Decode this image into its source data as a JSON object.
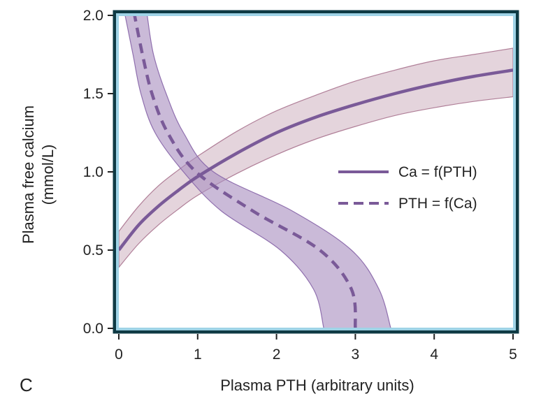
{
  "chart_data": {
    "type": "line",
    "panel_label": "C",
    "xlabel": "Plasma PTH (arbitrary units)",
    "ylabel_line1": "Plasma free calcium",
    "ylabel_line2": "(mmol/L)",
    "xlim": [
      0,
      5
    ],
    "ylim": [
      0,
      2
    ],
    "x_ticks": [
      0,
      1,
      2,
      3,
      4,
      5
    ],
    "x_tick_labels": [
      "0",
      "1",
      "2",
      "3",
      "4",
      "5"
    ],
    "y_ticks": [
      0,
      0.5,
      1,
      1.5,
      2
    ],
    "y_tick_labels": [
      "0.0",
      "0.5",
      "1.0",
      "1.5",
      "2.0"
    ],
    "grid": false,
    "legend_position": "right",
    "colors": {
      "frame": "#0e3a44",
      "inner_border": "#9fd3e6",
      "series": "#7a5a98",
      "band_ca": "#c9a9b9",
      "band_pth": "#a98fc0"
    },
    "series": [
      {
        "name": "Ca = f(PTH)",
        "style": "solid",
        "x": [
          0,
          0.25,
          0.5,
          0.75,
          1.0,
          1.5,
          2.0,
          2.5,
          3.0,
          3.5,
          4.0,
          4.5,
          5.0
        ],
        "y": [
          0.5,
          0.66,
          0.78,
          0.88,
          0.97,
          1.12,
          1.25,
          1.35,
          1.43,
          1.5,
          1.56,
          1.61,
          1.65
        ],
        "y_low": [
          0.39,
          0.54,
          0.66,
          0.76,
          0.85,
          0.99,
          1.11,
          1.21,
          1.29,
          1.36,
          1.41,
          1.45,
          1.48
        ],
        "y_high": [
          0.62,
          0.78,
          0.91,
          1.01,
          1.1,
          1.26,
          1.39,
          1.49,
          1.58,
          1.65,
          1.71,
          1.75,
          1.79
        ]
      },
      {
        "name": "PTH = f(Ca)",
        "style": "dashed",
        "y": [
          0.0,
          0.25,
          0.5,
          0.75,
          1.0,
          1.25,
          1.5,
          1.75,
          2.0
        ],
        "x": [
          3.0,
          2.95,
          2.55,
          1.7,
          0.98,
          0.62,
          0.42,
          0.3,
          0.2
        ],
        "x_low": [
          2.6,
          2.47,
          2.05,
          1.3,
          0.82,
          0.46,
          0.28,
          0.18,
          0.08
        ],
        "x_high": [
          3.45,
          3.3,
          2.95,
          2.2,
          1.2,
          0.82,
          0.6,
          0.44,
          0.36
        ]
      }
    ]
  }
}
